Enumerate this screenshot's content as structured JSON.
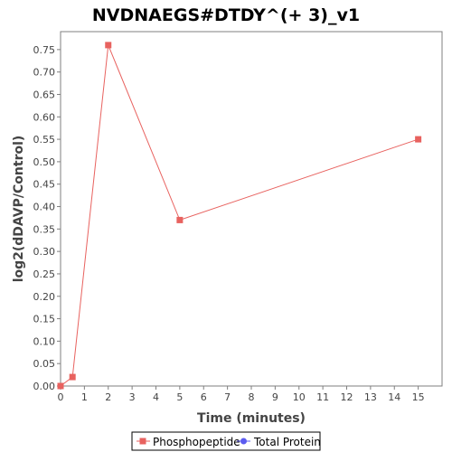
{
  "chart_data": {
    "type": "line",
    "title": "NVDNAEGS#DTDY^(+ 3)_v1",
    "xlabel": "Time (minutes)",
    "ylabel": "log2(dDAVP/Control)",
    "xlim": [
      0,
      16
    ],
    "ylim": [
      0,
      0.79
    ],
    "x_ticks": [
      0,
      1,
      2,
      3,
      4,
      5,
      6,
      7,
      8,
      9,
      10,
      11,
      12,
      13,
      14,
      15
    ],
    "y_ticks": [
      0.0,
      0.05,
      0.1,
      0.15,
      0.2,
      0.25,
      0.3,
      0.35,
      0.4,
      0.45,
      0.5,
      0.55,
      0.6,
      0.65,
      0.7,
      0.75
    ],
    "y_tick_labels": [
      "0.00",
      "0.05",
      "0.10",
      "0.15",
      "0.20",
      "0.25",
      "0.30",
      "0.35",
      "0.40",
      "0.45",
      "0.50",
      "0.55",
      "0.60",
      "0.65",
      "0.70",
      "0.75"
    ],
    "grid": false,
    "legend_position": "bottom",
    "series": [
      {
        "name": "Phosphopeptide",
        "color": "#e8625f",
        "marker": "square",
        "x": [
          0,
          0.5,
          2,
          5,
          15
        ],
        "y": [
          0.0,
          0.02,
          0.76,
          0.37,
          0.55
        ]
      },
      {
        "name": "Total Protein",
        "color": "#5b5bf0",
        "marker": "circle",
        "x": [],
        "y": []
      }
    ]
  }
}
